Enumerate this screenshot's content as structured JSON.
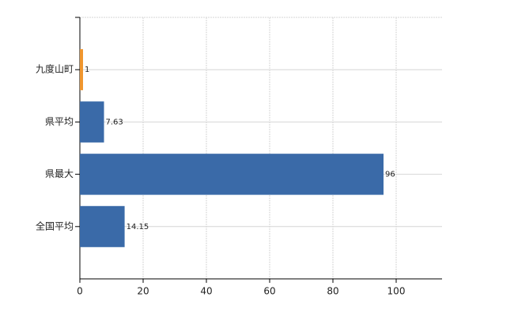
{
  "chart_data": {
    "type": "hbar",
    "categories": [
      "九度山町",
      "県平均",
      "県最大",
      "全国平均"
    ],
    "values": [
      1,
      7.63,
      96,
      14.15
    ],
    "colors": [
      "#f0962e",
      "#3a6aa8",
      "#3a6aa8",
      "#3a6aa8"
    ],
    "xlim": [
      0,
      114.5
    ],
    "xticks": [
      0,
      20,
      40,
      60,
      80,
      100
    ],
    "grid": true
  }
}
